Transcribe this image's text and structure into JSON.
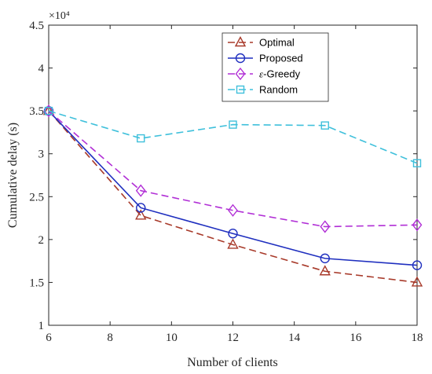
{
  "chart_data": {
    "type": "line",
    "xlabel": "Number of clients",
    "ylabel": "Cumulative delay (s)",
    "y_exponent_label": "×10⁴",
    "x": [
      6,
      9,
      12,
      15,
      18
    ],
    "xlim": [
      6,
      18
    ],
    "ylim": [
      1,
      4.5
    ],
    "x_ticks": [
      6,
      8,
      10,
      12,
      14,
      16,
      18
    ],
    "x_tick_labels": [
      "6",
      "8",
      "10",
      "12",
      "14",
      "16",
      "18"
    ],
    "y_ticks": [
      1,
      1.5,
      2,
      2.5,
      3,
      3.5,
      4,
      4.5
    ],
    "y_tick_labels": [
      "1",
      "1.5",
      "2",
      "2.5",
      "3",
      "3.5",
      "4",
      "4.5"
    ],
    "grid": false,
    "legend_position": "top-right",
    "series": [
      {
        "name": "Optimal",
        "values": [
          3.5,
          2.28,
          1.94,
          1.63,
          1.5
        ],
        "color": "#a83a2a",
        "dash": "dashed",
        "marker": "triangle"
      },
      {
        "name": "Proposed",
        "values": [
          3.5,
          2.37,
          2.07,
          1.78,
          1.7
        ],
        "color": "#1f2fbf",
        "dash": "solid",
        "marker": "circle"
      },
      {
        "name": "ε-Greedy",
        "values": [
          3.5,
          2.57,
          2.34,
          2.15,
          2.17
        ],
        "color": "#b12fd6",
        "dash": "dashed",
        "marker": "diamond"
      },
      {
        "name": "Random",
        "values": [
          3.5,
          3.18,
          3.34,
          3.33,
          2.89
        ],
        "color": "#3fc0db",
        "dash": "dashed",
        "marker": "square"
      }
    ]
  }
}
